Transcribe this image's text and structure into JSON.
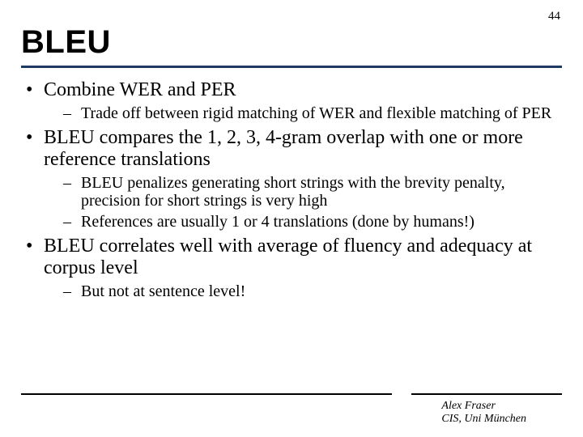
{
  "page_number": "44",
  "title": "BLEU",
  "colors": {
    "title_rule": "#1f3864",
    "text": "#000000",
    "background": "#ffffff",
    "footer_rule": "#000000"
  },
  "typography": {
    "title_family": "Arial",
    "title_weight": "700",
    "title_size_pt": 30,
    "body_family": "Times New Roman",
    "body_size_pt": 18,
    "sub_size_pt": 15,
    "credit_size_pt": 10,
    "credit_style": "italic"
  },
  "bullets": [
    {
      "text": "Combine WER and PER",
      "sub": [
        "Trade off between rigid matching of WER and flexible matching of PER"
      ]
    },
    {
      "text": "BLEU compares the 1, 2, 3, 4-gram overlap with one or more reference translations",
      "sub": [
        "BLEU penalizes generating short strings with the brevity penalty, precision for short strings is very high",
        "References are usually 1 or 4 translations (done by humans!)"
      ]
    },
    {
      "text": "BLEU correlates well with average of fluency and adequacy at corpus level",
      "sub": [
        "But not at sentence level!"
      ]
    }
  ],
  "footer": {
    "line1": "Alex Fraser",
    "line2": "CIS, Uni München"
  }
}
